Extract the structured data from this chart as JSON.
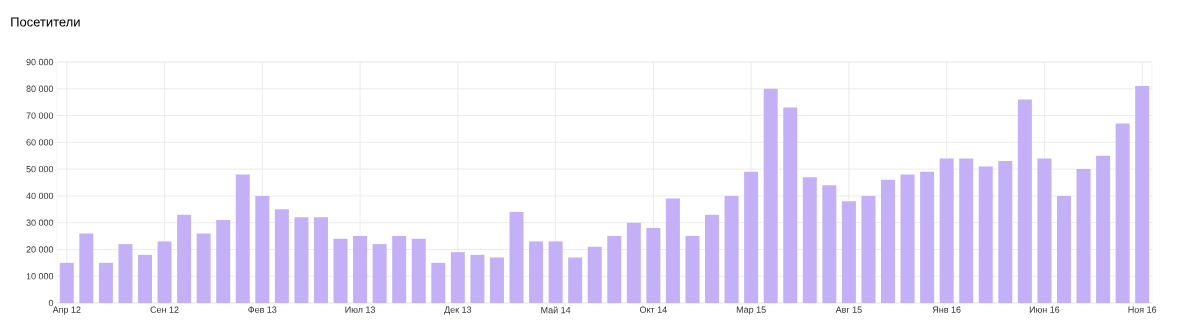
{
  "chart_data": {
    "type": "bar",
    "title": "Посетители",
    "categories": [
      "Апр 12",
      null,
      null,
      null,
      null,
      "Сен 12",
      null,
      null,
      null,
      null,
      "Фев 13",
      null,
      null,
      null,
      null,
      "Июл 13",
      null,
      null,
      null,
      null,
      "Дек 13",
      null,
      null,
      null,
      null,
      "Май 14",
      null,
      null,
      null,
      null,
      "Окт 14",
      null,
      null,
      null,
      null,
      "Мар 15",
      null,
      null,
      null,
      null,
      "Авг 15",
      null,
      null,
      null,
      null,
      "Янв 16",
      null,
      null,
      null,
      null,
      "Июн 16",
      null,
      null,
      null,
      null,
      "Ноя 16"
    ],
    "values": [
      15000,
      26000,
      15000,
      22000,
      18000,
      23000,
      33000,
      26000,
      31000,
      48000,
      40000,
      35000,
      32000,
      32000,
      24000,
      25000,
      22000,
      25000,
      24000,
      15000,
      19000,
      18000,
      17000,
      34000,
      23000,
      23000,
      17000,
      21000,
      25000,
      30000,
      28000,
      39000,
      25000,
      33000,
      40000,
      49000,
      80000,
      73000,
      47000,
      44000,
      38000,
      40000,
      46000,
      48000,
      49000,
      54000,
      54000,
      51000,
      53000,
      76000,
      54000,
      40000,
      50000,
      55000,
      67000,
      81000
    ],
    "color": "#c4b0f7",
    "ylim": [
      0,
      90000
    ],
    "yticks": [
      {
        "value": 0,
        "label": "0"
      },
      {
        "value": 10000,
        "label": "10 000"
      },
      {
        "value": 20000,
        "label": "20 000"
      },
      {
        "value": 30000,
        "label": "30 000"
      },
      {
        "value": 40000,
        "label": "40 000"
      },
      {
        "value": 50000,
        "label": "50 000"
      },
      {
        "value": 60000,
        "label": "60 000"
      },
      {
        "value": 70000,
        "label": "70 000"
      },
      {
        "value": 80000,
        "label": "80 000"
      },
      {
        "value": 90000,
        "label": "90 000"
      }
    ],
    "grid": true
  }
}
